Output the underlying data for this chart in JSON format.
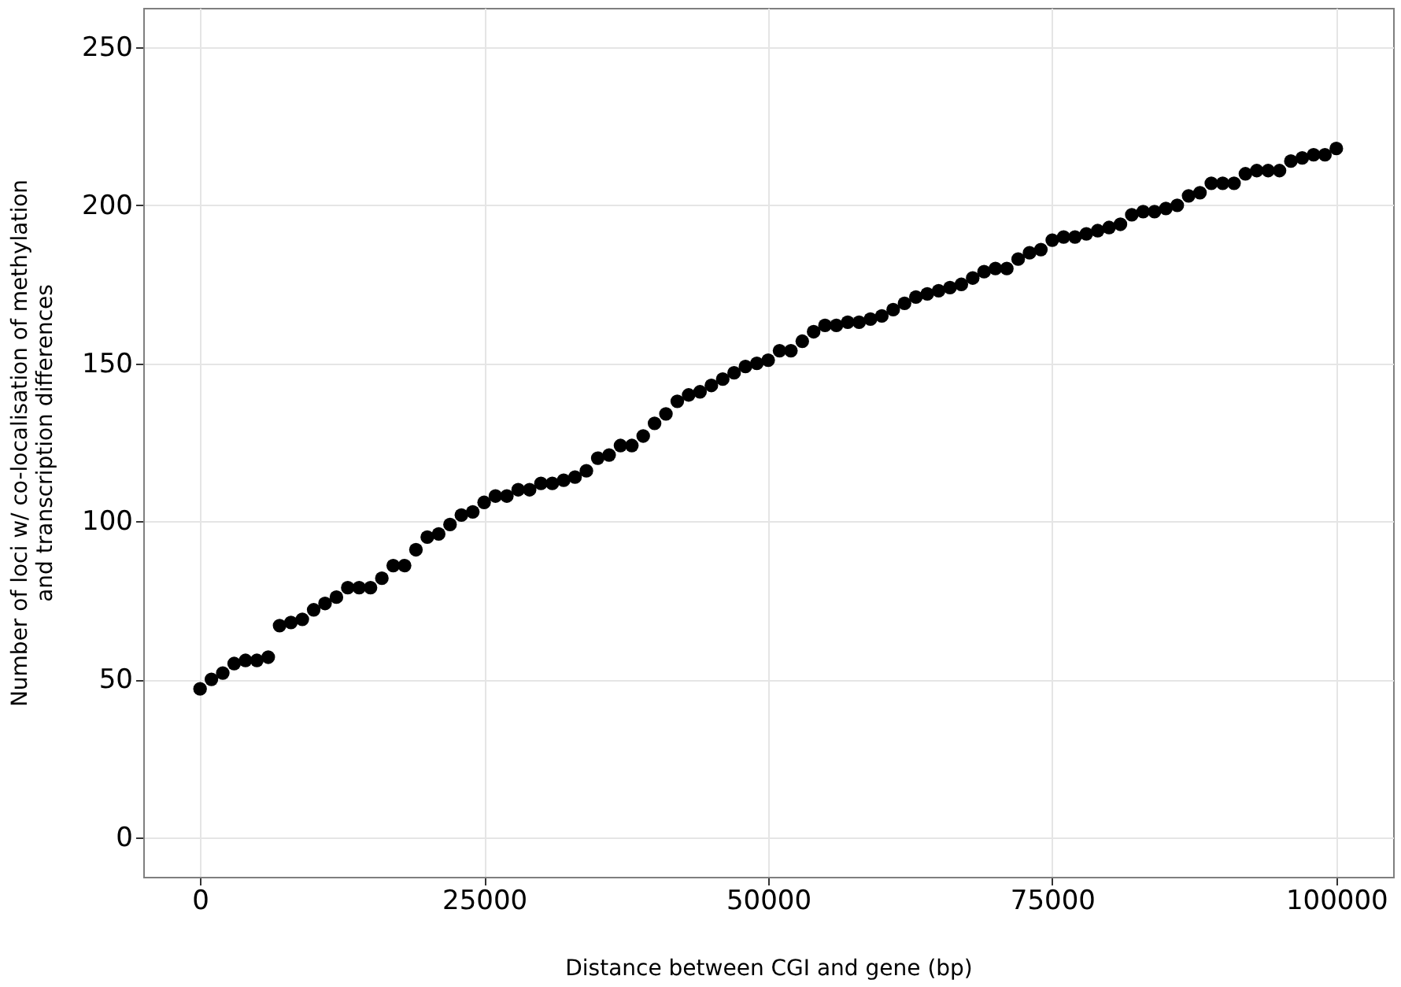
{
  "chart_data": {
    "type": "scatter",
    "xlabel": "Distance between CGI and gene (bp)",
    "ylabel": "Number of loci w/ co-localisation of methylation\nand transcription differences",
    "x": [
      0,
      1000,
      2000,
      3000,
      4000,
      5000,
      6000,
      7000,
      8000,
      9000,
      10000,
      11000,
      12000,
      13000,
      14000,
      15000,
      16000,
      17000,
      18000,
      19000,
      20000,
      21000,
      22000,
      23000,
      24000,
      25000,
      26000,
      27000,
      28000,
      29000,
      30000,
      31000,
      32000,
      33000,
      34000,
      35000,
      36000,
      37000,
      38000,
      39000,
      40000,
      41000,
      42000,
      43000,
      44000,
      45000,
      46000,
      47000,
      48000,
      49000,
      50000,
      51000,
      52000,
      53000,
      54000,
      55000,
      56000,
      57000,
      58000,
      59000,
      60000,
      61000,
      62000,
      63000,
      64000,
      65000,
      66000,
      67000,
      68000,
      69000,
      70000,
      71000,
      72000,
      73000,
      74000,
      75000,
      76000,
      77000,
      78000,
      79000,
      80000,
      81000,
      82000,
      83000,
      84000,
      85000,
      86000,
      87000,
      88000,
      89000,
      90000,
      91000,
      92000,
      93000,
      94000,
      95000,
      96000,
      97000,
      98000,
      99000,
      100000
    ],
    "series": [
      {
        "color": "#000000",
        "values": [
          47,
          50,
          52,
          55,
          56,
          56,
          57,
          67,
          68,
          69,
          72,
          74,
          76,
          79,
          79,
          79,
          82,
          86,
          86,
          91,
          95,
          96,
          99,
          102,
          103,
          106,
          108,
          108,
          110,
          110,
          112,
          112,
          113,
          114,
          116,
          120,
          121,
          124,
          124,
          127,
          131,
          134,
          138,
          140,
          141,
          143,
          145,
          147,
          149,
          150,
          151,
          154,
          154,
          157,
          160,
          162,
          162,
          163,
          163,
          164,
          165,
          167,
          169,
          171,
          172,
          173,
          174,
          175,
          177,
          179,
          180,
          180,
          183,
          185,
          186,
          189,
          190,
          190,
          191,
          192,
          193,
          194,
          197,
          198,
          198,
          199,
          200,
          203,
          204,
          207,
          207,
          207,
          210,
          211,
          211,
          211,
          214,
          215,
          216,
          216,
          218
        ]
      }
    ],
    "xlim": [
      -5000,
      105000
    ],
    "xticks": [
      0,
      25000,
      50000,
      75000,
      100000
    ],
    "ylim": [
      -12.5,
      262.5
    ],
    "yticks": [
      0,
      50,
      100,
      150,
      200,
      250
    ],
    "grid": true,
    "marker": "circle"
  }
}
